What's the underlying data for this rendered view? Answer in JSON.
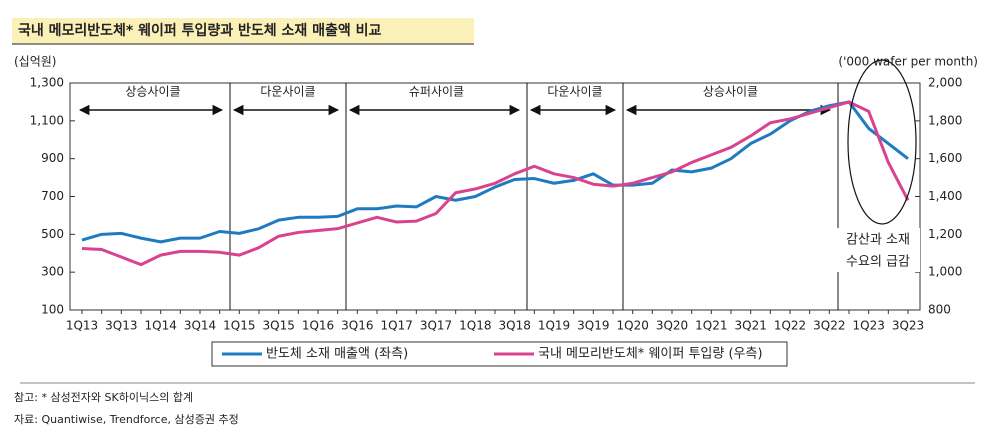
{
  "chart_data": {
    "type": "line",
    "title": "국내 메모리반도체* 웨이퍼 투입량과 반도체 소재 매출액 비교",
    "y_label": "(십억원)",
    "y2_label": "('000 wafer per month)",
    "categories": [
      "1Q13",
      null,
      "3Q13",
      null,
      "1Q14",
      null,
      "3Q14",
      null,
      "1Q15",
      null,
      "3Q15",
      null,
      "1Q16",
      null,
      "3Q16",
      null,
      "1Q17",
      null,
      "3Q17",
      null,
      "1Q18",
      null,
      "3Q18",
      null,
      "1Q19",
      null,
      "3Q19",
      null,
      "1Q20",
      null,
      "3Q20",
      null,
      "1Q21",
      null,
      "3Q21",
      null,
      "1Q22",
      null,
      "3Q22",
      null,
      "1Q23",
      null,
      "3Q23"
    ],
    "series": [
      {
        "name": "반도체 소재 매출액 (좌측)",
        "color": "#1f7bc1",
        "axis": "y",
        "values": [
          470,
          500,
          505,
          480,
          460,
          480,
          480,
          515,
          505,
          530,
          575,
          590,
          590,
          595,
          635,
          635,
          650,
          645,
          700,
          680,
          700,
          750,
          790,
          795,
          770,
          785,
          820,
          760,
          760,
          770,
          840,
          830,
          850,
          900,
          980,
          1030,
          1100,
          1150,
          1180,
          1200,
          1060,
          980,
          900
        ]
      },
      {
        "name": "국내 메모리반도체* 웨이퍼 투입량 (우측)",
        "color": "#d8428e",
        "axis": "y2",
        "values": [
          1125,
          1120,
          1080,
          1040,
          1090,
          1110,
          1110,
          1105,
          1090,
          1130,
          1190,
          1210,
          1220,
          1230,
          1260,
          1290,
          1265,
          1270,
          1310,
          1420,
          1440,
          1470,
          1520,
          1560,
          1520,
          1500,
          1465,
          1455,
          1470,
          1500,
          1530,
          1580,
          1620,
          1660,
          1720,
          1790,
          1810,
          1840,
          1870,
          1900,
          1850,
          1580,
          1380
        ]
      }
    ],
    "ylim": [
      100,
      1300
    ],
    "yticks": [
      100,
      300,
      500,
      700,
      900,
      {
        "value": 1100,
        "label": "1,100"
      },
      {
        "value": 1300,
        "label": "1,300"
      }
    ],
    "y2lim": [
      800,
      2000
    ],
    "y2ticks": [
      800,
      {
        "value": 1000,
        "label": "1,000"
      },
      {
        "value": 1200,
        "label": "1,200"
      },
      {
        "value": 1400,
        "label": "1,400"
      },
      {
        "value": 1600,
        "label": "1,600"
      },
      {
        "value": 1800,
        "label": "1,800"
      },
      {
        "value": 2000,
        "label": "2,000"
      }
    ],
    "phases": [
      "상승사이클",
      "다운사이클",
      "슈퍼사이클",
      "다운사이클",
      "상승사이클"
    ],
    "annotation": [
      "감산과 소재",
      "수요의 급감"
    ],
    "notes": [
      "참고: * 삼성전자와 SK하이닉스의 합계",
      "자료: Quantiwise, Trendforce, 삼성증권 추정"
    ]
  }
}
